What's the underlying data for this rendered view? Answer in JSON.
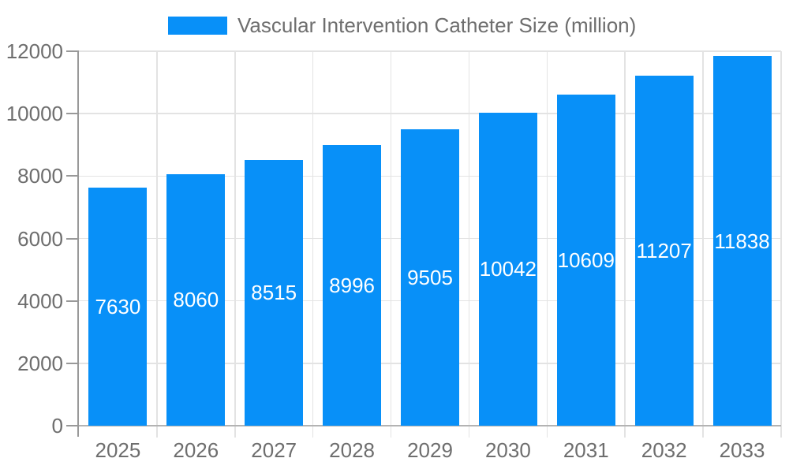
{
  "legend": {
    "label": "Vascular Intervention Catheter Size (million)"
  },
  "colors": {
    "bar": "#0890f8",
    "grid_line": "#e3e3e3",
    "y_axis_line": "#999999",
    "x_axis_line": "#b3b3b3",
    "tick_label": "#6e6e6e",
    "bar_value_label": "#ffffff",
    "background": "#ffffff"
  },
  "chart_data": {
    "type": "bar",
    "title": "Vascular Intervention Catheter Size (million)",
    "series_name": "Vascular Intervention Catheter Size (million)",
    "categories": [
      "2025",
      "2026",
      "2027",
      "2028",
      "2029",
      "2030",
      "2031",
      "2032",
      "2033"
    ],
    "values": [
      7630,
      8060,
      8515,
      8996,
      9505,
      10042,
      10609,
      11207,
      11838
    ],
    "xlabel": "",
    "ylabel": "",
    "ylim": [
      0,
      12000
    ],
    "ytick_interval": 2000,
    "ytick_labels": [
      "0",
      "2000",
      "4000",
      "6000",
      "8000",
      "10000",
      "12000"
    ],
    "grid": true,
    "legend_position": "top-center",
    "value_label_position": "inside-center"
  }
}
